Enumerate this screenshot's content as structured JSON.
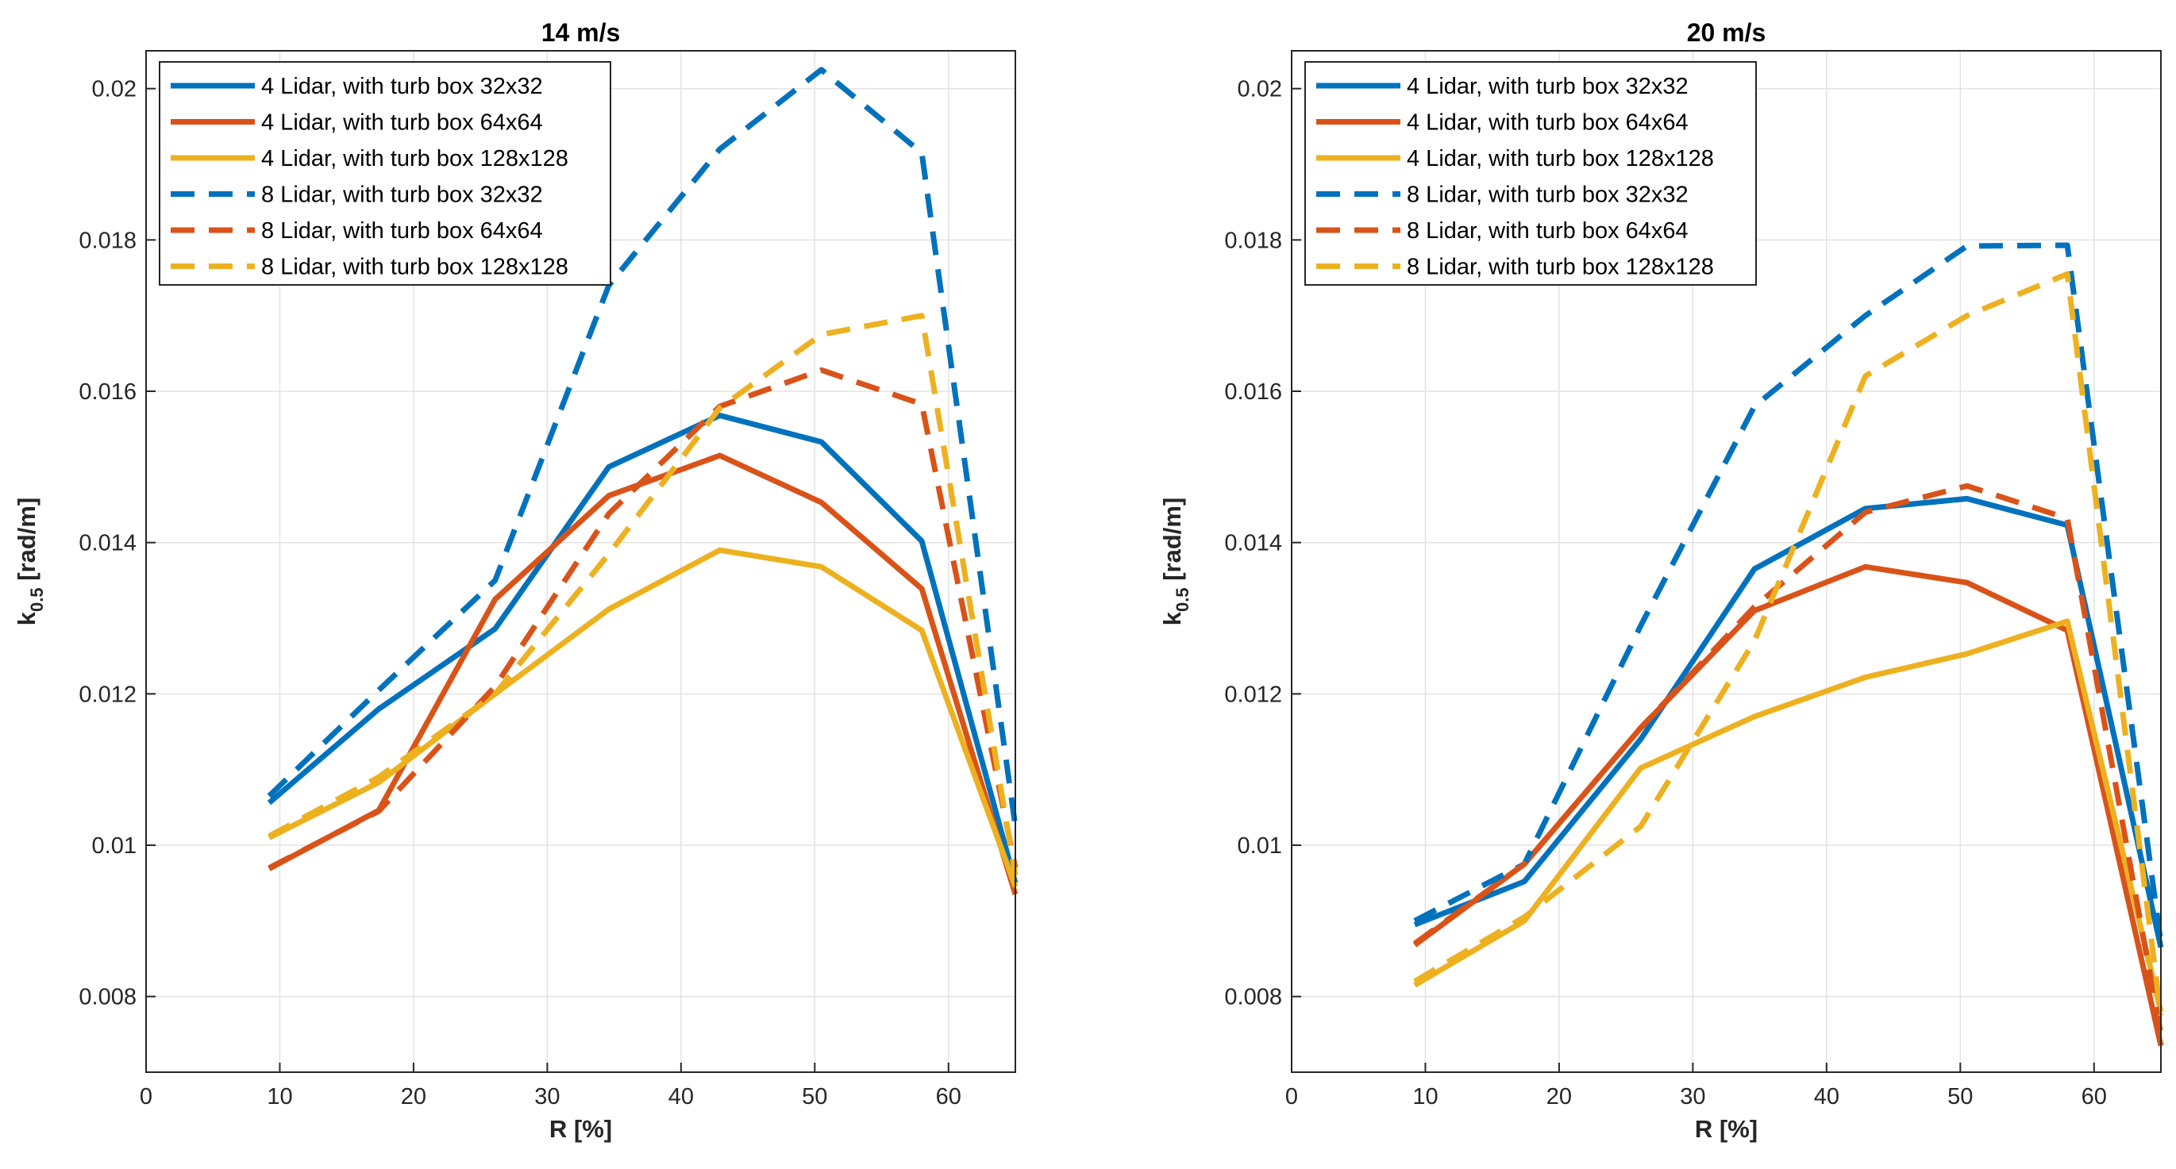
{
  "chart_data": [
    {
      "type": "line",
      "title": "14 m/s",
      "xlabel": "R [%]",
      "ylabel_main": "k",
      "ylabel_sub": "0.5",
      "ylabel_unit": "[rad/m]",
      "xlim": [
        0,
        65
      ],
      "ylim": [
        0.007,
        0.0205
      ],
      "xticks": [
        0,
        10,
        20,
        30,
        40,
        50,
        60
      ],
      "yticks": [
        0.008,
        0.01,
        0.012,
        0.014,
        0.016,
        0.018,
        0.02
      ],
      "ytick_labels": [
        "0.008",
        "0.01",
        "0.012",
        "0.014",
        "0.016",
        "0.018",
        "0.02"
      ],
      "grid": true,
      "legend_position": "top-left",
      "x": [
        9.2,
        17.4,
        26.1,
        34.6,
        42.9,
        50.5,
        58.0,
        65.0
      ],
      "series": [
        {
          "name": "4 Lidar, with turb box 32x32",
          "color": "#0072BD",
          "dash": false,
          "values": [
            0.01056,
            0.0118,
            0.01286,
            0.015,
            0.01568,
            0.01533,
            0.01402,
            0.0095
          ]
        },
        {
          "name": "4 Lidar, with turb box 64x64",
          "color": "#D95319",
          "dash": false,
          "values": [
            0.00969,
            0.01046,
            0.01325,
            0.01462,
            0.01515,
            0.01453,
            0.01339,
            0.00935
          ]
        },
        {
          "name": "4 Lidar, with turb box 128x128",
          "color": "#EDB120",
          "dash": false,
          "values": [
            0.0101,
            0.01083,
            0.012,
            0.01312,
            0.0139,
            0.01368,
            0.01284,
            0.00945
          ]
        },
        {
          "name": "8 Lidar, with turb box 32x32",
          "color": "#0072BD",
          "dash": true,
          "values": [
            0.01065,
            0.01205,
            0.0135,
            0.0174,
            0.0192,
            0.02025,
            0.01915,
            0.01025
          ]
        },
        {
          "name": "8 Lidar, with turb box 64x64",
          "color": "#D95319",
          "dash": true,
          "values": [
            0.0097,
            0.01045,
            0.0121,
            0.01438,
            0.0158,
            0.01628,
            0.01583,
            0.0097
          ]
        },
        {
          "name": "8 Lidar, with turb box 128x128",
          "color": "#EDB120",
          "dash": true,
          "values": [
            0.01012,
            0.0109,
            0.012,
            0.01385,
            0.01578,
            0.01675,
            0.017,
            0.0096
          ]
        }
      ]
    },
    {
      "type": "line",
      "title": "20 m/s",
      "xlabel": "R [%]",
      "ylabel_main": "k",
      "ylabel_sub": "0.5",
      "ylabel_unit": "[rad/m]",
      "xlim": [
        0,
        65
      ],
      "ylim": [
        0.007,
        0.0205
      ],
      "xticks": [
        0,
        10,
        20,
        30,
        40,
        50,
        60
      ],
      "yticks": [
        0.008,
        0.01,
        0.012,
        0.014,
        0.016,
        0.018,
        0.02
      ],
      "ytick_labels": [
        "0.008",
        "0.01",
        "0.012",
        "0.014",
        "0.016",
        "0.018",
        "0.02"
      ],
      "grid": true,
      "legend_position": "top-left",
      "x": [
        9.2,
        17.4,
        26.1,
        34.6,
        42.9,
        50.5,
        58.0,
        65.0
      ],
      "series": [
        {
          "name": "4 Lidar, with turb box 32x32",
          "color": "#0072BD",
          "dash": false,
          "values": [
            0.00895,
            0.00952,
            0.0114,
            0.01365,
            0.01445,
            0.01458,
            0.01423,
            0.00865
          ]
        },
        {
          "name": "4 Lidar, with turb box 64x64",
          "color": "#D95319",
          "dash": false,
          "values": [
            0.00868,
            0.00975,
            0.01155,
            0.0131,
            0.01368,
            0.01347,
            0.01284,
            0.00735
          ]
        },
        {
          "name": "4 Lidar, with turb box 128x128",
          "color": "#EDB120",
          "dash": false,
          "values": [
            0.00815,
            0.009,
            0.01102,
            0.0117,
            0.01222,
            0.01253,
            0.01296,
            0.0078
          ]
        },
        {
          "name": "8 Lidar, with turb box 32x32",
          "color": "#0072BD",
          "dash": true,
          "values": [
            0.009,
            0.00975,
            0.0129,
            0.0158,
            0.017,
            0.01792,
            0.01793,
            0.0087
          ]
        },
        {
          "name": "8 Lidar, with turb box 64x64",
          "color": "#D95319",
          "dash": true,
          "values": [
            0.0087,
            0.00975,
            0.01155,
            0.01315,
            0.0144,
            0.01475,
            0.01432,
            0.0075
          ]
        },
        {
          "name": "8 Lidar, with turb box 128x128",
          "color": "#EDB120",
          "dash": true,
          "values": [
            0.0082,
            0.00905,
            0.01025,
            0.0127,
            0.0162,
            0.017,
            0.01755,
            0.00775
          ]
        }
      ]
    }
  ]
}
